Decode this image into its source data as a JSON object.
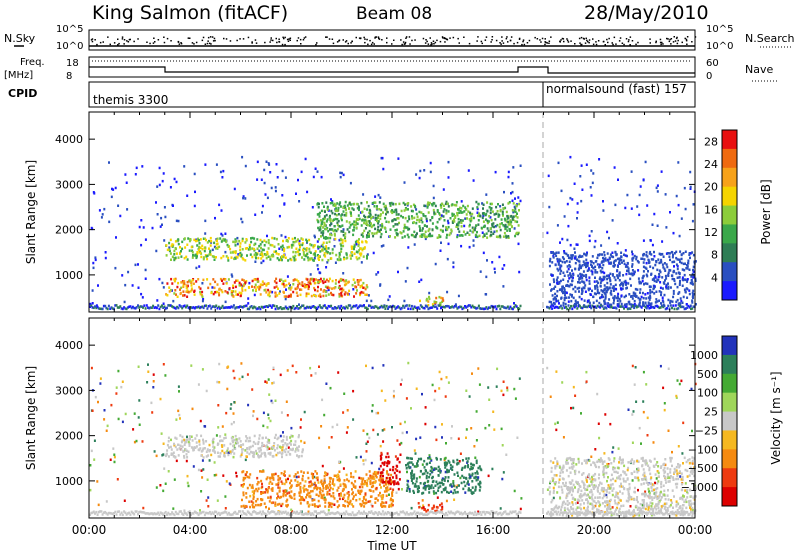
{
  "header": {
    "station": "King Salmon (fitACF)",
    "beam": "Beam 08",
    "date": "28/May/2010"
  },
  "status_panels": {
    "nsky_label": "N.Sky",
    "nsearch_label": "N.Search",
    "left_ticks_top": [
      "10^5",
      "10^0"
    ],
    "right_ticks_top": [
      "10^5",
      "10^0"
    ],
    "freq_label_1": "Freq.",
    "freq_label_2": "[MHz]",
    "freq_ticks": [
      "18",
      "8"
    ],
    "nave_label": "Nave",
    "nave_ticks": [
      "60",
      "0"
    ],
    "cpid_label": "CPID",
    "cpid_segments": [
      {
        "name": "themis 3300",
        "start_hour": 0,
        "end_hour": 18
      },
      {
        "name": "normalsound (fast) 157",
        "start_hour": 18,
        "end_hour": 24
      }
    ]
  },
  "colors": {
    "power_scale": [
      "#1a1aff",
      "#2a4fc0",
      "#2e7d55",
      "#3aa84a",
      "#8ccd3a",
      "#f5d400",
      "#f7a21a",
      "#ef6a10",
      "#e81010"
    ],
    "velocity_scale": [
      "#2233bb",
      "#2c7f5a",
      "#44aa33",
      "#9fd65a",
      "#c8c8c8",
      "#f5b820",
      "#f58a10",
      "#ee3a10",
      "#dd0000"
    ]
  },
  "chart_data": [
    {
      "type": "heatmap",
      "title": "Power",
      "xlabel": "",
      "ylabel": "Slant Range [km]",
      "x_ticks": [
        "00:00",
        "04:00",
        "08:00",
        "12:00",
        "16:00",
        "20:00",
        "00:00"
      ],
      "x_range_hours": [
        0,
        24
      ],
      "y_ticks": [
        1000,
        2000,
        3000,
        4000
      ],
      "ylim": [
        180,
        4600
      ],
      "colorbar_label": "Power [dB]",
      "colorbar_ticks": [
        "4",
        "8",
        "12",
        "16",
        "20",
        "24",
        "28"
      ],
      "colorbar_range": [
        0,
        30
      ],
      "data_gap_hours": [
        17.1,
        18.1
      ],
      "features": [
        {
          "name": "band-near",
          "start_hour": 3.0,
          "end_hour": 11.0,
          "range_km": [
            500,
            900
          ],
          "peak_value": 30
        },
        {
          "name": "band-mid",
          "start_hour": 3.0,
          "end_hour": 11.0,
          "range_km": [
            1300,
            1800
          ],
          "peak_value": 20
        },
        {
          "name": "band-far",
          "start_hour": 9.0,
          "end_hour": 17.0,
          "range_km": [
            1800,
            2600
          ],
          "peak_value": 16
        },
        {
          "name": "patch-1330",
          "start_hour": 13.0,
          "end_hour": 14.0,
          "range_km": [
            300,
            500
          ],
          "peak_value": 26
        },
        {
          "name": "late-bands",
          "start_hour": 18.2,
          "end_hour": 24.0,
          "range_km": [
            300,
            1500
          ],
          "peak_value": 6
        }
      ]
    },
    {
      "type": "heatmap",
      "title": "Velocity",
      "xlabel": "Time UT",
      "ylabel": "Slant Range [km]",
      "x_ticks": [
        "00:00",
        "04:00",
        "08:00",
        "12:00",
        "16:00",
        "20:00",
        "00:00"
      ],
      "x_range_hours": [
        0,
        24
      ],
      "y_ticks": [
        1000,
        2000,
        3000,
        4000
      ],
      "ylim": [
        180,
        4600
      ],
      "colorbar_label": "Velocity [m s⁻¹]",
      "colorbar_ticks": [
        "1000",
        "500",
        "100",
        "25",
        "−25",
        "−100",
        "−500",
        "−1000"
      ],
      "data_gap_hours": [
        17.1,
        18.1
      ],
      "features": [
        {
          "name": "grey-band",
          "start_hour": 3.0,
          "end_hour": 8.5,
          "range_km": [
            1500,
            2000
          ],
          "value": 0
        },
        {
          "name": "orange-slope",
          "start_hour": 6.0,
          "end_hour": 12.0,
          "range_km": [
            400,
            1200
          ],
          "value": -150
        },
        {
          "name": "red-peak",
          "start_hour": 11.5,
          "end_hour": 12.3,
          "range_km": [
            900,
            1600
          ],
          "value": -900
        },
        {
          "name": "green-patch",
          "start_hour": 12.5,
          "end_hour": 15.5,
          "range_km": [
            700,
            1500
          ],
          "value": 300
        },
        {
          "name": "orange-patch-1330",
          "start_hour": 13.0,
          "end_hour": 14.0,
          "range_km": [
            300,
            500
          ],
          "value": -400
        },
        {
          "name": "late-grey",
          "start_hour": 18.2,
          "end_hour": 24.0,
          "range_km": [
            200,
            1500
          ],
          "value": 0
        }
      ]
    }
  ]
}
